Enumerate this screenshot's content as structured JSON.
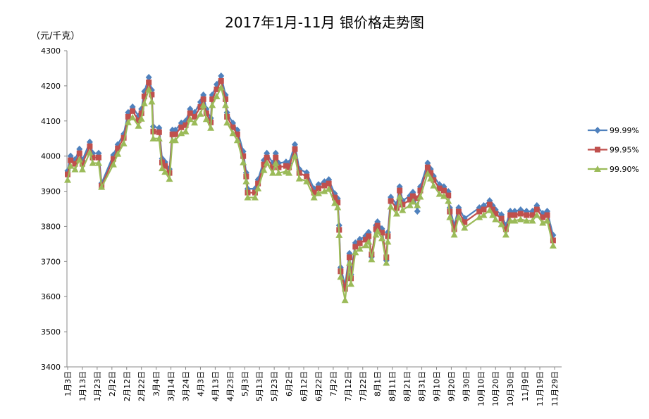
{
  "chart_data": {
    "type": "line",
    "title": "2017年1月-11月 银价格走势图",
    "ylabel": "（元/千克）",
    "xlabel": "",
    "ylim": [
      3400,
      4300
    ],
    "yticks": [
      3400,
      3500,
      3600,
      3700,
      3800,
      3900,
      4000,
      4100,
      4200,
      4300
    ],
    "xlim": [
      "1/3",
      "11/29"
    ],
    "xtick_labels": [
      "1月3日",
      "1月13日",
      "1月23日",
      "2月2日",
      "2月12日",
      "2月22日",
      "3月4日",
      "3月14日",
      "3月24日",
      "4月3日",
      "4月13日",
      "4月23日",
      "5月3日",
      "5月13日",
      "5月23日",
      "6月2日",
      "6月12日",
      "6月22日",
      "7月2日",
      "7月12日",
      "7月22日",
      "8月1日",
      "8月11日",
      "8月21日",
      "8月31日",
      "9月10日",
      "9月20日",
      "9月30日",
      "10月10日",
      "10月20日",
      "10月30日",
      "11月9日",
      "11月19日",
      "11月29日"
    ],
    "legend_position": "right",
    "grid": false,
    "x": [
      "1/3",
      "1/5",
      "1/8",
      "1/11",
      "1/13",
      "1/18",
      "1/20",
      "1/24",
      "1/26",
      "2/3",
      "2/6",
      "2/10",
      "2/13",
      "2/16",
      "2/20",
      "2/22",
      "2/24",
      "2/27",
      "3/1",
      "3/2",
      "3/6",
      "3/8",
      "3/10",
      "3/13",
      "3/15",
      "3/17",
      "3/21",
      "3/24",
      "3/27",
      "3/30",
      "4/3",
      "4/5",
      "4/7",
      "4/10",
      "4/11",
      "4/14",
      "4/17",
      "4/20",
      "4/21",
      "4/25",
      "4/28",
      "5/2",
      "5/4",
      "5/5",
      "5/10",
      "5/12",
      "5/16",
      "5/18",
      "5/22",
      "5/24",
      "5/26",
      "5/31",
      "6/2",
      "6/6",
      "6/9",
      "6/14",
      "6/19",
      "6/22",
      "6/26",
      "6/29",
      "7/3",
      "7/5",
      "7/6",
      "7/7",
      "7/10",
      "7/13",
      "7/14",
      "7/17",
      "7/20",
      "7/24",
      "7/26",
      "7/28",
      "7/31",
      "8/1",
      "8/4",
      "8/7",
      "8/8",
      "8/10",
      "8/14",
      "8/16",
      "8/18",
      "8/23",
      "8/25",
      "8/28",
      "8/30",
      "9/4",
      "9/6",
      "9/8",
      "9/12",
      "9/15",
      "9/18",
      "9/19",
      "9/22",
      "9/25",
      "9/29",
      "10/9",
      "10/12",
      "10/16",
      "10/18",
      "10/20",
      "10/24",
      "10/27",
      "10/30",
      "11/2",
      "11/6",
      "11/10",
      "11/14",
      "11/17",
      "11/21",
      "11/24",
      "11/28"
    ],
    "series": [
      {
        "name": "99.99%",
        "color": "#4f81bd",
        "marker": "diamond",
        "values": [
          3958,
          4000,
          3990,
          4020,
          3988,
          4040,
          4008,
          4008,
          3923,
          4003,
          4033,
          4063,
          4124,
          4140,
          4114,
          4134,
          4184,
          4224,
          4188,
          4084,
          4080,
          3993,
          3983,
          3963,
          4074,
          4074,
          4094,
          4100,
          4134,
          4124,
          4154,
          4174,
          4134,
          4108,
          4174,
          4204,
          4228,
          4174,
          4124,
          4094,
          4074,
          4013,
          3953,
          3907,
          3907,
          3933,
          3988,
          4008,
          3980,
          4008,
          3980,
          3983,
          3980,
          4033,
          3963,
          3953,
          3907,
          3919,
          3927,
          3933,
          3893,
          3879,
          3803,
          3683,
          3633,
          3723,
          3663,
          3753,
          3763,
          3773,
          3783,
          3713,
          3803,
          3813,
          3793,
          3703,
          3783,
          3883,
          3863,
          3913,
          3873,
          3887,
          3897,
          3843,
          3913,
          3980,
          3963,
          3943,
          3919,
          3913,
          3899,
          3853,
          3803,
          3853,
          3823,
          3853,
          3859,
          3873,
          3859,
          3847,
          3833,
          3803,
          3843,
          3843,
          3847,
          3843,
          3843,
          3859,
          3837,
          3843,
          3775
        ]
      },
      {
        "name": "99.95%",
        "color": "#c0504d",
        "marker": "square",
        "values": [
          3948,
          3988,
          3978,
          4008,
          3978,
          4028,
          3996,
          3996,
          3915,
          3992,
          4022,
          4052,
          4112,
          4128,
          4102,
          4122,
          4170,
          4210,
          4175,
          4070,
          4068,
          3982,
          3972,
          3952,
          4062,
          4062,
          4082,
          4088,
          4122,
          4112,
          4140,
          4162,
          4122,
          4096,
          4162,
          4190,
          4214,
          4162,
          4112,
          4082,
          4062,
          4000,
          3942,
          3896,
          3896,
          3922,
          3976,
          3996,
          3968,
          3996,
          3968,
          3972,
          3968,
          4020,
          3952,
          3942,
          3896,
          3908,
          3916,
          3922,
          3882,
          3868,
          3790,
          3672,
          3622,
          3712,
          3652,
          3742,
          3752,
          3762,
          3772,
          3720,
          3792,
          3802,
          3782,
          3712,
          3772,
          3872,
          3852,
          3902,
          3862,
          3876,
          3886,
          3880,
          3902,
          3968,
          3952,
          3932,
          3908,
          3902,
          3888,
          3842,
          3792,
          3842,
          3812,
          3842,
          3848,
          3862,
          3848,
          3836,
          3822,
          3792,
          3832,
          3832,
          3836,
          3832,
          3832,
          3848,
          3826,
          3832,
          3760
        ]
      },
      {
        "name": "99.90%",
        "color": "#9bbb59",
        "marker": "triangle",
        "values": [
          3932,
          3972,
          3962,
          3990,
          3962,
          4010,
          3980,
          3980,
          3912,
          3976,
          4006,
          4036,
          4096,
          4110,
          4086,
          4106,
          4150,
          4190,
          4155,
          4050,
          4050,
          3965,
          3955,
          3935,
          4045,
          4045,
          4065,
          4070,
          4105,
          4095,
          4120,
          4145,
          4105,
          4080,
          4145,
          4170,
          4195,
          4145,
          4095,
          4065,
          4045,
          3982,
          3928,
          3882,
          3882,
          3908,
          3960,
          3980,
          3952,
          3980,
          3952,
          3956,
          3952,
          4000,
          3936,
          3928,
          3882,
          3894,
          3900,
          3906,
          3866,
          3854,
          3775,
          3656,
          3590,
          3696,
          3636,
          3726,
          3736,
          3746,
          3756,
          3706,
          3776,
          3786,
          3766,
          3696,
          3756,
          3856,
          3836,
          3884,
          3846,
          3860,
          3870,
          3860,
          3884,
          3950,
          3936,
          3916,
          3892,
          3886,
          3872,
          3826,
          3776,
          3826,
          3796,
          3826,
          3832,
          3846,
          3832,
          3820,
          3806,
          3776,
          3816,
          3816,
          3820,
          3816,
          3816,
          3832,
          3810,
          3816,
          3745
        ]
      }
    ]
  }
}
